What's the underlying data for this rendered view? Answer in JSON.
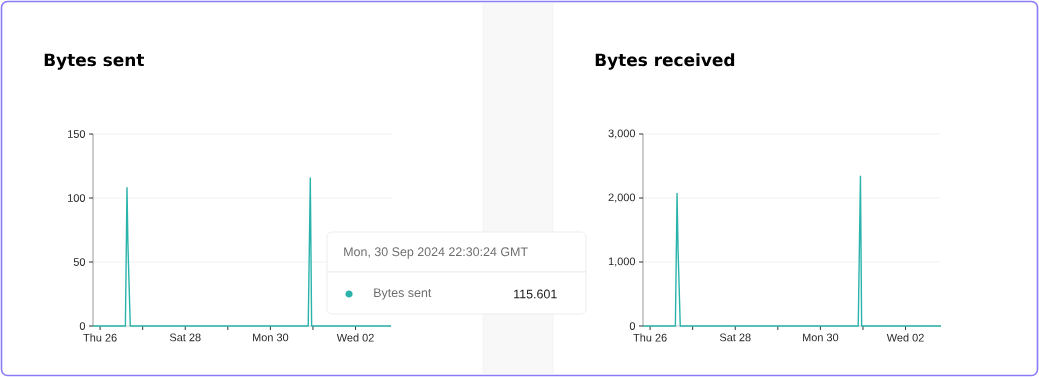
{
  "chart_data": [
    {
      "type": "line",
      "title": "Bytes sent",
      "color": "#2ab3ab",
      "x": [
        "2024-09-25T20:00",
        "2024-09-26T14:15",
        "2024-09-26T15:10",
        "2024-09-26T15:40",
        "2024-09-26T17:00",
        "2024-09-30T21:20",
        "2024-09-30T22:30",
        "2024-09-30T23:15",
        "2024-10-02T20:00"
      ],
      "values": [
        0,
        0,
        108,
        65,
        0,
        0,
        115.601,
        0,
        0
      ],
      "xlim": [
        "2024-09-25T20:00",
        "2024-10-02T20:00"
      ],
      "xticks": [
        {
          "value": "2024-09-26",
          "label": "Thu 26"
        },
        {
          "value": "2024-09-27",
          "label": null
        },
        {
          "value": "2024-09-28",
          "label": "Sat 28"
        },
        {
          "value": "2024-09-29",
          "label": null
        },
        {
          "value": "2024-09-30",
          "label": "Mon 30"
        },
        {
          "value": "2024-10-01",
          "label": null
        },
        {
          "value": "2024-10-02",
          "label": "Wed 02"
        }
      ],
      "ylim": [
        0,
        150
      ],
      "yticks": [
        0,
        50,
        100,
        150
      ],
      "grid": "y",
      "annotations": [
        "Mon, 30 Sep 2024 22:30:24 GMT",
        "Bytes sent",
        "115.601"
      ]
    },
    {
      "type": "line",
      "title": "Bytes received",
      "color": "#2ab3ab",
      "x": [
        "2024-09-25T20:00",
        "2024-09-26T14:15",
        "2024-09-26T15:12",
        "2024-09-26T15:45",
        "2024-09-26T17:00",
        "2024-09-30T21:20",
        "2024-09-30T22:35",
        "2024-09-30T23:15",
        "2024-10-02T20:00"
      ],
      "values": [
        0,
        0,
        2070,
        1200,
        0,
        0,
        2340,
        0,
        0
      ],
      "xlim": [
        "2024-09-25T20:00",
        "2024-10-02T20:00"
      ],
      "xticks": [
        {
          "value": "2024-09-26",
          "label": "Thu 26"
        },
        {
          "value": "2024-09-27",
          "label": null
        },
        {
          "value": "2024-09-28",
          "label": "Sat 28"
        },
        {
          "value": "2024-09-29",
          "label": null
        },
        {
          "value": "2024-09-30",
          "label": "Mon 30"
        },
        {
          "value": "2024-10-01",
          "label": null
        },
        {
          "value": "2024-10-02",
          "label": "Wed 02"
        }
      ],
      "ylim": [
        0,
        3000
      ],
      "yticks": [
        0,
        {
          "value": 1000,
          "label": "1,000"
        },
        {
          "value": 2000,
          "label": "2,000"
        },
        {
          "value": 3000,
          "label": "3,000"
        }
      ],
      "grid": "y"
    }
  ]
}
